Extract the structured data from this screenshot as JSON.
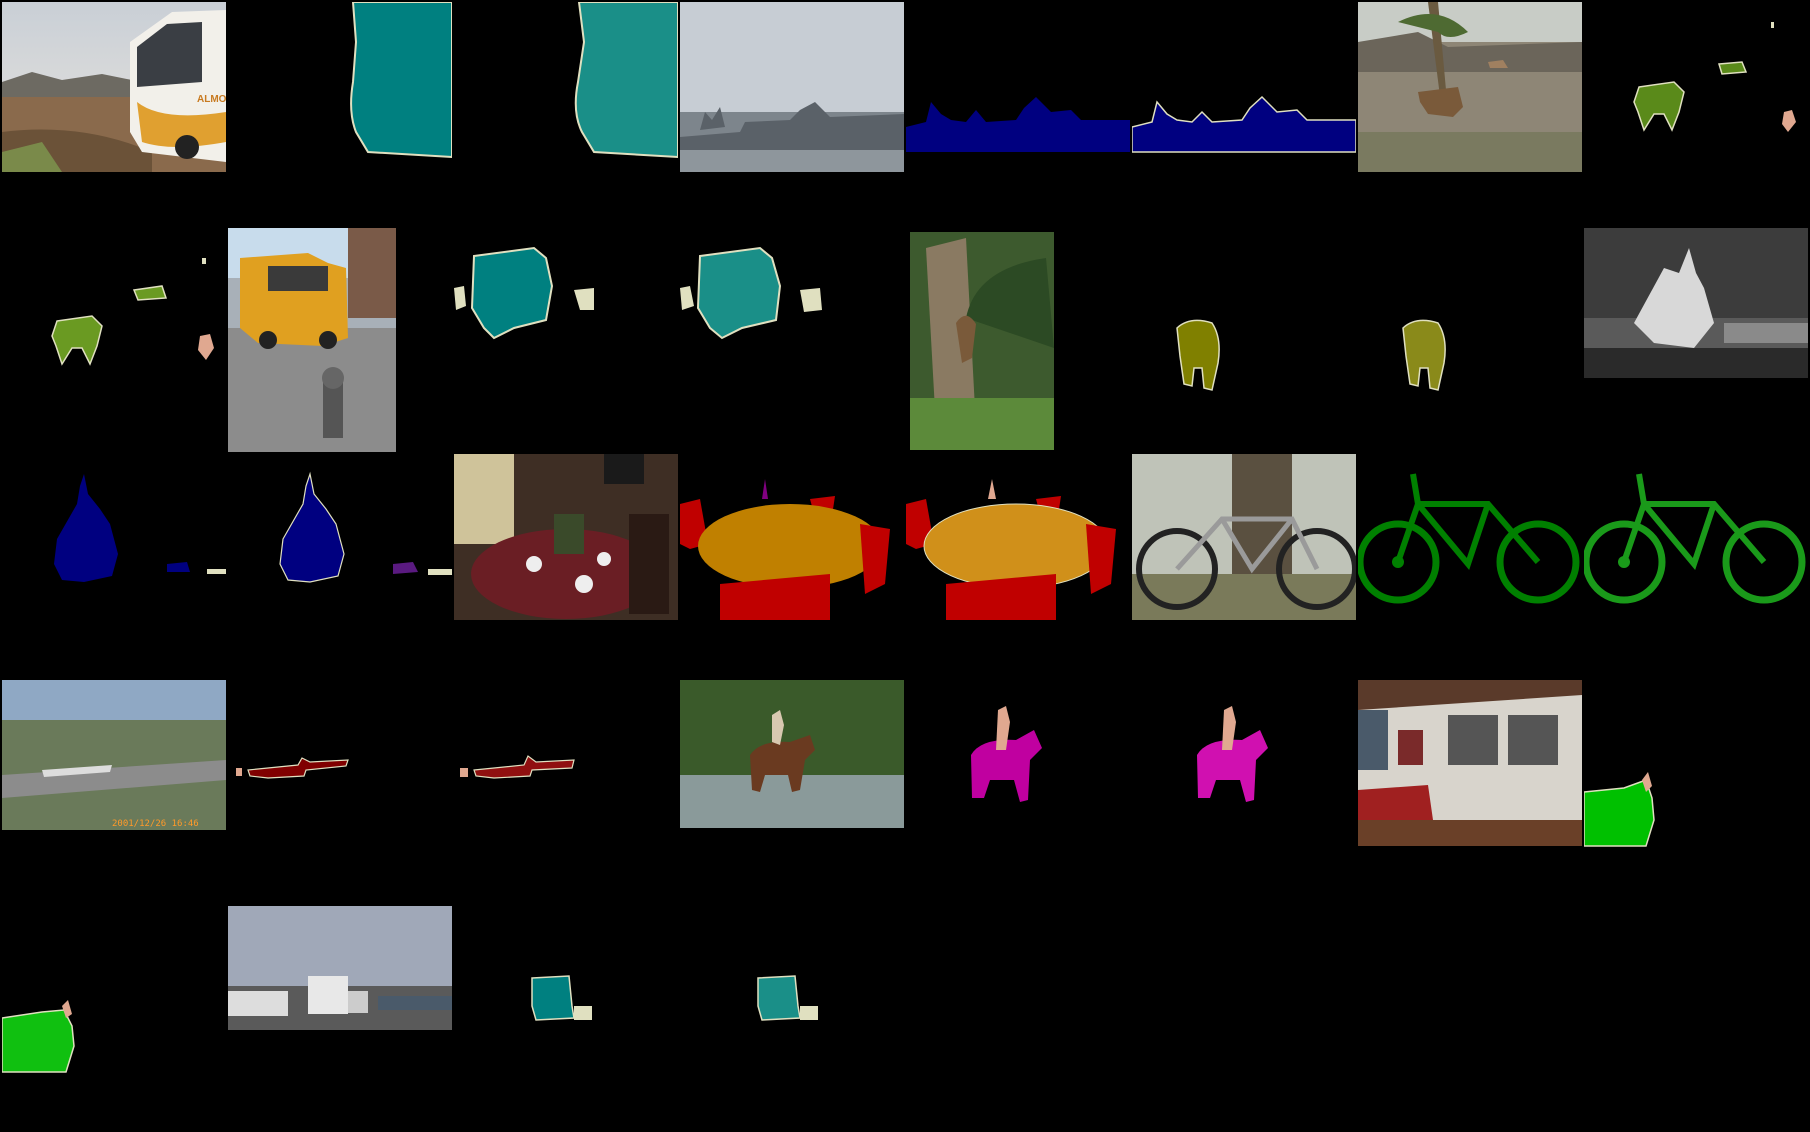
{
  "figure": {
    "description_free": true,
    "image_text": {
      "bus_side_text": "ALMOL",
      "airport_timestamp": "2001/12/26 16:46"
    },
    "class_colors": {
      "bus": "#008080",
      "boat": "#000080",
      "cow": "#5a8a1a",
      "bird": "#808000",
      "person": "#e0a890",
      "dining_table": "#c08000",
      "chair": "#c00000",
      "bicycle": "#008000",
      "aeroplane": "#800000",
      "horse": "#c000a0",
      "bottle": "#800080",
      "sofa": "#00c000",
      "background": "#000000",
      "boundary": "#e0e0c0"
    }
  }
}
